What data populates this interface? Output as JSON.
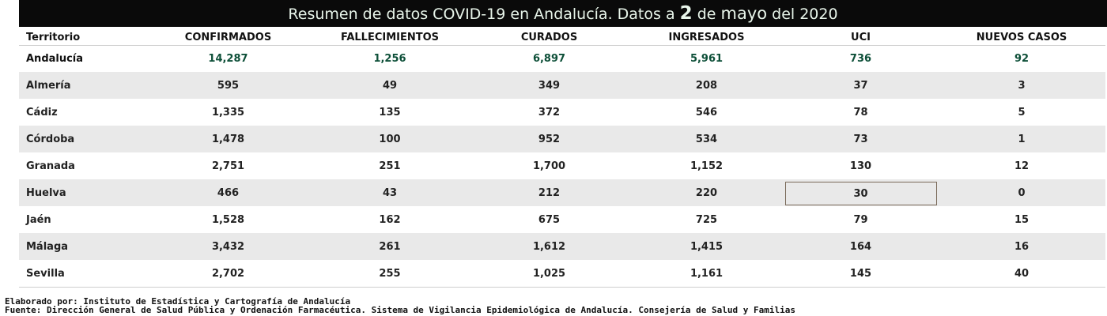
{
  "title": {
    "part1": "Resumen de datos COVID-19 en Andalucía. Datos a ",
    "day": "2",
    "part2": " de ",
    "month": "mayo",
    "part3": " del 2020"
  },
  "table": {
    "columns": [
      "Territorio",
      "CONFIRMADOS",
      "FALLECIMIENTOS",
      "CURADOS",
      "INGRESADOS",
      "UCI",
      "NUEVOS CASOS"
    ],
    "rows": [
      {
        "territory": "Andalucía",
        "confirmados": "14,287",
        "fallecimientos": "1,256",
        "curados": "6,897",
        "ingresados": "5,961",
        "uci": "736",
        "nuevos": "92"
      },
      {
        "territory": "Almería",
        "confirmados": "595",
        "fallecimientos": "49",
        "curados": "349",
        "ingresados": "208",
        "uci": "37",
        "nuevos": "3"
      },
      {
        "territory": "Cádiz",
        "confirmados": "1,335",
        "fallecimientos": "135",
        "curados": "372",
        "ingresados": "546",
        "uci": "78",
        "nuevos": "5"
      },
      {
        "territory": "Córdoba",
        "confirmados": "1,478",
        "fallecimientos": "100",
        "curados": "952",
        "ingresados": "534",
        "uci": "73",
        "nuevos": "1"
      },
      {
        "territory": "Granada",
        "confirmados": "2,751",
        "fallecimientos": "251",
        "curados": "1,700",
        "ingresados": "1,152",
        "uci": "130",
        "nuevos": "12"
      },
      {
        "territory": "Huelva",
        "confirmados": "466",
        "fallecimientos": "43",
        "curados": "212",
        "ingresados": "220",
        "uci": "30",
        "nuevos": "0"
      },
      {
        "territory": "Jaén",
        "confirmados": "1,528",
        "fallecimientos": "162",
        "curados": "675",
        "ingresados": "725",
        "uci": "79",
        "nuevos": "15"
      },
      {
        "territory": "Málaga",
        "confirmados": "3,432",
        "fallecimientos": "261",
        "curados": "1,612",
        "ingresados": "1,415",
        "uci": "164",
        "nuevos": "16"
      },
      {
        "territory": "Sevilla",
        "confirmados": "2,702",
        "fallecimientos": "255",
        "curados": "1,025",
        "ingresados": "1,161",
        "uci": "145",
        "nuevos": "40"
      }
    ]
  },
  "footer": {
    "line1": "Elaborado por: Instituto de Estadística y Cartografía de Andalucía",
    "line2": "Fuente: Dirección General de Salud Pública y Ordenación Farmacéutica. Sistema de Vigilancia Epidemiológica de Andalucía. Consejería de Salud y Familias"
  },
  "colors": {
    "title_bg": "#0a0a0a",
    "title_text": "#e8f5ea",
    "total_values": "#0d4f38",
    "stripe": "#e9e9e9",
    "highlight_border": "#7a6a5a"
  }
}
